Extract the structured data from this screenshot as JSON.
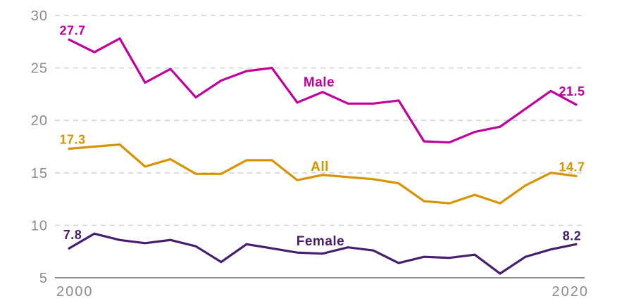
{
  "chart_data": {
    "type": "line",
    "title": "",
    "xlabel": "",
    "ylabel": "",
    "x": [
      2000,
      2001,
      2002,
      2003,
      2004,
      2005,
      2006,
      2007,
      2008,
      2009,
      2010,
      2011,
      2012,
      2013,
      2014,
      2015,
      2016,
      2017,
      2018,
      2019,
      2020
    ],
    "x_axis": {
      "range": [
        2000,
        2020
      ],
      "tick_labels": [
        "2000",
        "2020"
      ]
    },
    "y_axis": {
      "range": [
        5,
        30
      ],
      "ticks": [
        30,
        25,
        20,
        15,
        10,
        5
      ],
      "gridlines": "dashed-horizontal"
    },
    "grid": true,
    "legend_position": "inline-labels-on-lines",
    "series": [
      {
        "name": "Male",
        "color": "#c0009c",
        "start_label": "27.7",
        "end_label": "21.5",
        "values": [
          27.7,
          26.5,
          27.8,
          23.6,
          24.9,
          22.2,
          23.8,
          24.7,
          25.0,
          21.7,
          22.7,
          21.6,
          21.6,
          21.9,
          18.0,
          17.9,
          18.9,
          19.4,
          21.1,
          22.8,
          21.5
        ]
      },
      {
        "name": "All",
        "color": "#d79400",
        "start_label": "17.3",
        "end_label": "14.7",
        "values": [
          17.3,
          17.5,
          17.7,
          15.6,
          16.3,
          14.9,
          14.9,
          16.2,
          16.2,
          14.3,
          14.8,
          14.6,
          14.4,
          14.0,
          12.3,
          12.1,
          12.9,
          12.1,
          13.8,
          15.0,
          14.7
        ]
      },
      {
        "name": "Female",
        "color": "#471d6e",
        "start_label": "7.8",
        "end_label": "8.2",
        "values": [
          7.8,
          9.2,
          8.6,
          8.3,
          8.6,
          8.0,
          6.5,
          8.2,
          7.8,
          7.4,
          7.3,
          7.9,
          7.6,
          6.4,
          7.0,
          6.9,
          7.2,
          5.4,
          7.0,
          7.7,
          8.2
        ]
      }
    ]
  },
  "colors": {
    "background": "#ffffff",
    "axis_text": "#8c8c8c",
    "gridline": "#d8d8d8",
    "baseline": "#8f8f8f"
  }
}
